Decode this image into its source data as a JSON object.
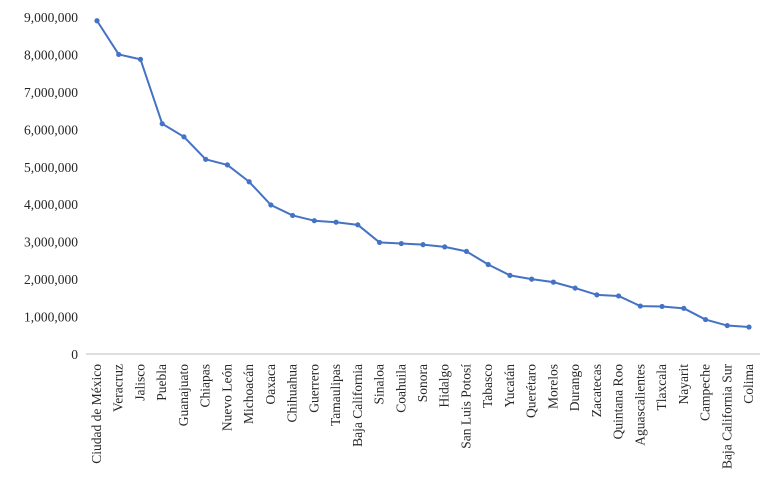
{
  "chart_data": {
    "type": "line",
    "title": "",
    "xlabel": "",
    "ylabel": "",
    "ylim": [
      0,
      9000000
    ],
    "yticks": [
      0,
      1000000,
      2000000,
      3000000,
      4000000,
      5000000,
      6000000,
      7000000,
      8000000,
      9000000
    ],
    "ytick_labels": [
      "0",
      "1,000,000",
      "2,000,000",
      "3,000,000",
      "4,000,000",
      "5,000,000",
      "6,000,000",
      "7,000,000",
      "8,000,000",
      "9,000,000"
    ],
    "grid": false,
    "legend": "none",
    "categories": [
      "Ciudad de México",
      "Veracruz",
      "Jalisco",
      "Puebla",
      "Guanajuato",
      "Chiapas",
      "Nuevo León",
      "Michoacán",
      "Oaxaca",
      "Chihuahua",
      "Guerrero",
      "Tamaulipas",
      "Baja California",
      "Sinaloa",
      "Coahuila",
      "Sonora",
      "Hidalgo",
      "San Luis Potosí",
      "Tabasco",
      "Yucatán",
      "Querétaro",
      "Morelos",
      "Durango",
      "Zacatecas",
      "Quintana Roo",
      "Aguascalientes",
      "Tlaxcala",
      "Nayarit",
      "Campeche",
      "Baja California Sur",
      "Colima"
    ],
    "series": [
      {
        "color": "#4472c4",
        "values": [
          8900000,
          8000000,
          7870000,
          6150000,
          5800000,
          5200000,
          5050000,
          4600000,
          3980000,
          3700000,
          3560000,
          3520000,
          3450000,
          2980000,
          2950000,
          2920000,
          2860000,
          2740000,
          2390000,
          2100000,
          2000000,
          1920000,
          1760000,
          1580000,
          1550000,
          1280000,
          1270000,
          1220000,
          920000,
          760000,
          720000
        ]
      }
    ]
  }
}
